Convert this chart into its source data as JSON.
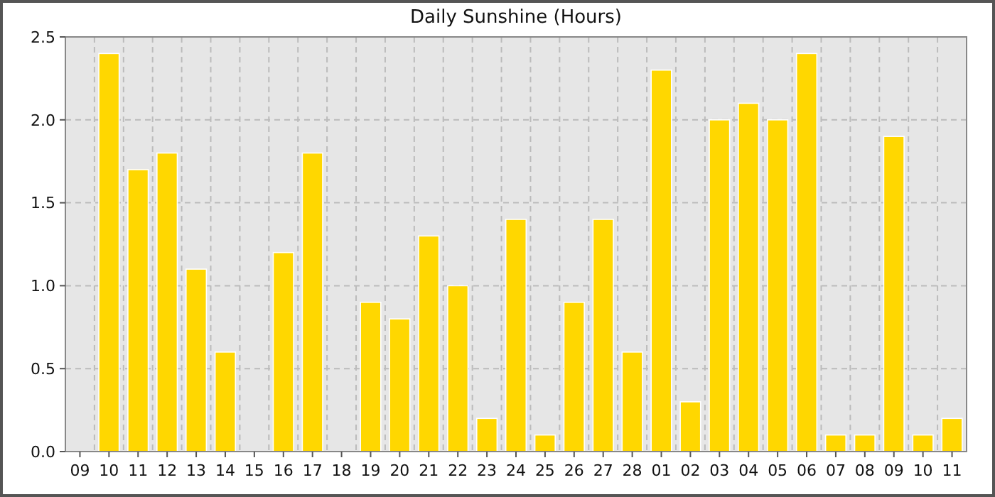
{
  "chart_data": {
    "type": "bar",
    "title": "Daily Sunshine (Hours)",
    "categories": [
      "09",
      "10",
      "11",
      "12",
      "13",
      "14",
      "15",
      "16",
      "17",
      "18",
      "19",
      "20",
      "21",
      "22",
      "23",
      "24",
      "25",
      "26",
      "27",
      "28",
      "01",
      "02",
      "03",
      "04",
      "05",
      "06",
      "07",
      "08",
      "09",
      "10",
      "11"
    ],
    "values": [
      0,
      2.4,
      1.7,
      1.8,
      1.1,
      0.6,
      0,
      1.2,
      1.8,
      0,
      0.9,
      0.8,
      1.3,
      1.0,
      0.2,
      1.4,
      0.1,
      0.9,
      1.4,
      0.6,
      2.3,
      0.3,
      2.0,
      2.1,
      2.0,
      2.4,
      0.1,
      0.1,
      1.9,
      0.1,
      0.2
    ],
    "color": "#ffd700",
    "ylim": [
      0,
      2.5
    ],
    "yticks": [
      {
        "value": 0,
        "label": "0.0"
      },
      {
        "value": 0.5,
        "label": "0.5"
      },
      {
        "value": 1,
        "label": "1.0"
      },
      {
        "value": 1.5,
        "label": "1.5"
      },
      {
        "value": 2,
        "label": "2.0"
      },
      {
        "value": 2.5,
        "label": "2.5"
      }
    ],
    "grid": true
  }
}
